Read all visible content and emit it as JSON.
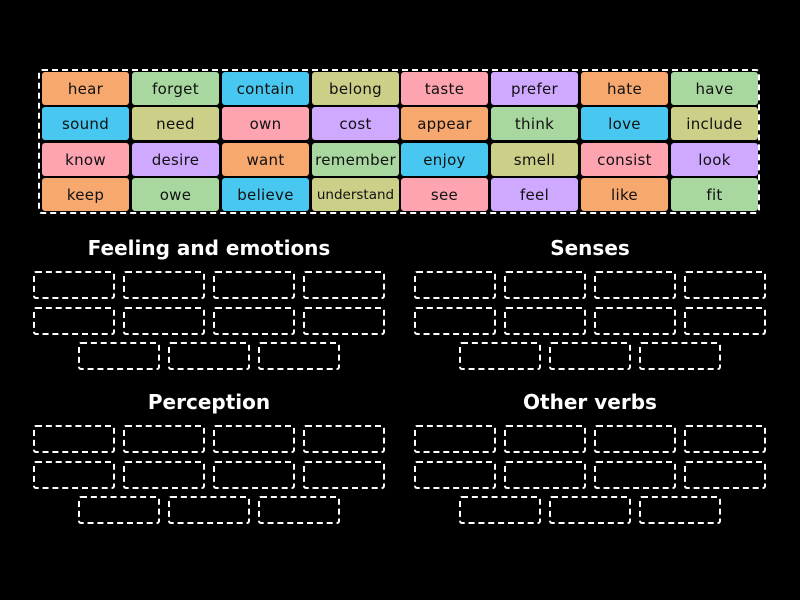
{
  "word_bank": {
    "tiles": [
      {
        "word": "hear",
        "color": "#f6a86e"
      },
      {
        "word": "forget",
        "color": "#a8d8a0"
      },
      {
        "word": "contain",
        "color": "#48c8f0"
      },
      {
        "word": "belong",
        "color": "#cccf88"
      },
      {
        "word": "taste",
        "color": "#fda4b0"
      },
      {
        "word": "prefer",
        "color": "#cfa8ff"
      },
      {
        "word": "hate",
        "color": "#f6a86e"
      },
      {
        "word": "have",
        "color": "#a8d8a0"
      },
      {
        "word": "sound",
        "color": "#48c8f0"
      },
      {
        "word": "need",
        "color": "#cccf88"
      },
      {
        "word": "own",
        "color": "#fda4b0"
      },
      {
        "word": "cost",
        "color": "#cfa8ff"
      },
      {
        "word": "appear",
        "color": "#f6a86e"
      },
      {
        "word": "think",
        "color": "#a8d8a0"
      },
      {
        "word": "love",
        "color": "#48c8f0"
      },
      {
        "word": "include",
        "color": "#cccf88"
      },
      {
        "word": "know",
        "color": "#fda4b0"
      },
      {
        "word": "desire",
        "color": "#cfa8ff"
      },
      {
        "word": "want",
        "color": "#f6a86e"
      },
      {
        "word": "remember",
        "color": "#a8d8a0"
      },
      {
        "word": "enjoy",
        "color": "#48c8f0"
      },
      {
        "word": "smell",
        "color": "#cccf88"
      },
      {
        "word": "consist",
        "color": "#fda4b0"
      },
      {
        "word": "look",
        "color": "#cfa8ff"
      },
      {
        "word": "keep",
        "color": "#f6a86e"
      },
      {
        "word": "owe",
        "color": "#a8d8a0"
      },
      {
        "word": "believe",
        "color": "#48c8f0"
      },
      {
        "word": "understand",
        "color": "#cccf88"
      },
      {
        "word": "see",
        "color": "#fda4b0"
      },
      {
        "word": "feel",
        "color": "#cfa8ff"
      },
      {
        "word": "like",
        "color": "#f6a86e"
      },
      {
        "word": "fit",
        "color": "#a8d8a0"
      }
    ]
  },
  "groups": [
    {
      "title": "Feeling and emotions",
      "slot_count": 11
    },
    {
      "title": "Senses",
      "slot_count": 11
    },
    {
      "title": "Perception",
      "slot_count": 11
    },
    {
      "title": "Other verbs",
      "slot_count": 11
    }
  ],
  "colors": {
    "background": "#000000",
    "border": "#ffffff",
    "text_dark": "#111111",
    "text_light": "#ffffff"
  }
}
